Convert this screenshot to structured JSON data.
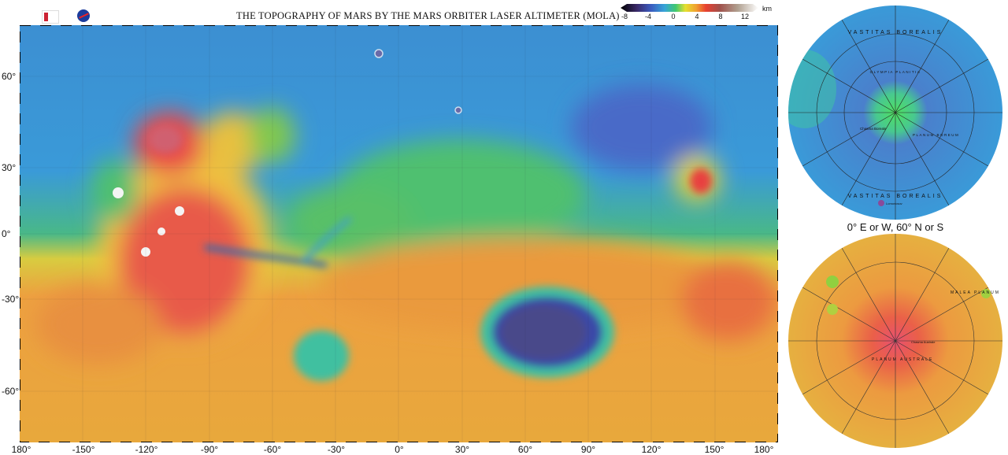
{
  "title": "THE TOPOGRAPHY OF MARS BY THE MARS ORBITER LASER ALTIMETER (MOLA)",
  "logos": [
    "MOLA science team logo",
    "NASA"
  ],
  "colorbar": {
    "unit": "km",
    "ticks": [
      "-8",
      "-4",
      "0",
      "4",
      "8",
      "12"
    ],
    "colors": [
      "#000000",
      "#3a2a6a",
      "#3b5bbf",
      "#37a4d8",
      "#40c870",
      "#e6e030",
      "#f0a030",
      "#e84030",
      "#a0504a",
      "#8a6a5a",
      "#b0a090",
      "#ffffff"
    ]
  },
  "map": {
    "longitude_labels": [
      "180°",
      "-150°",
      "-120°",
      "-90°",
      "-60°",
      "-30°",
      "0°",
      "30°",
      "60°",
      "90°",
      "120°",
      "150°",
      "180°"
    ],
    "latitude_labels": [
      "60°",
      "30°",
      "0°",
      "-30°",
      "-60°"
    ]
  },
  "polar": {
    "caption": "0° E or W, 60° N or S",
    "north_labels": [
      "VASTITAS BOREALIS",
      "VASTITAS BOREALIS",
      "OLYMPIA PLANITIA",
      "PLANUM BOREUM",
      "Chasma Boreale",
      "Lomonosov"
    ],
    "south_labels": [
      "PLANUM AUSTRALE",
      "MALEA PLANUM",
      "Chasma Australe"
    ]
  }
}
